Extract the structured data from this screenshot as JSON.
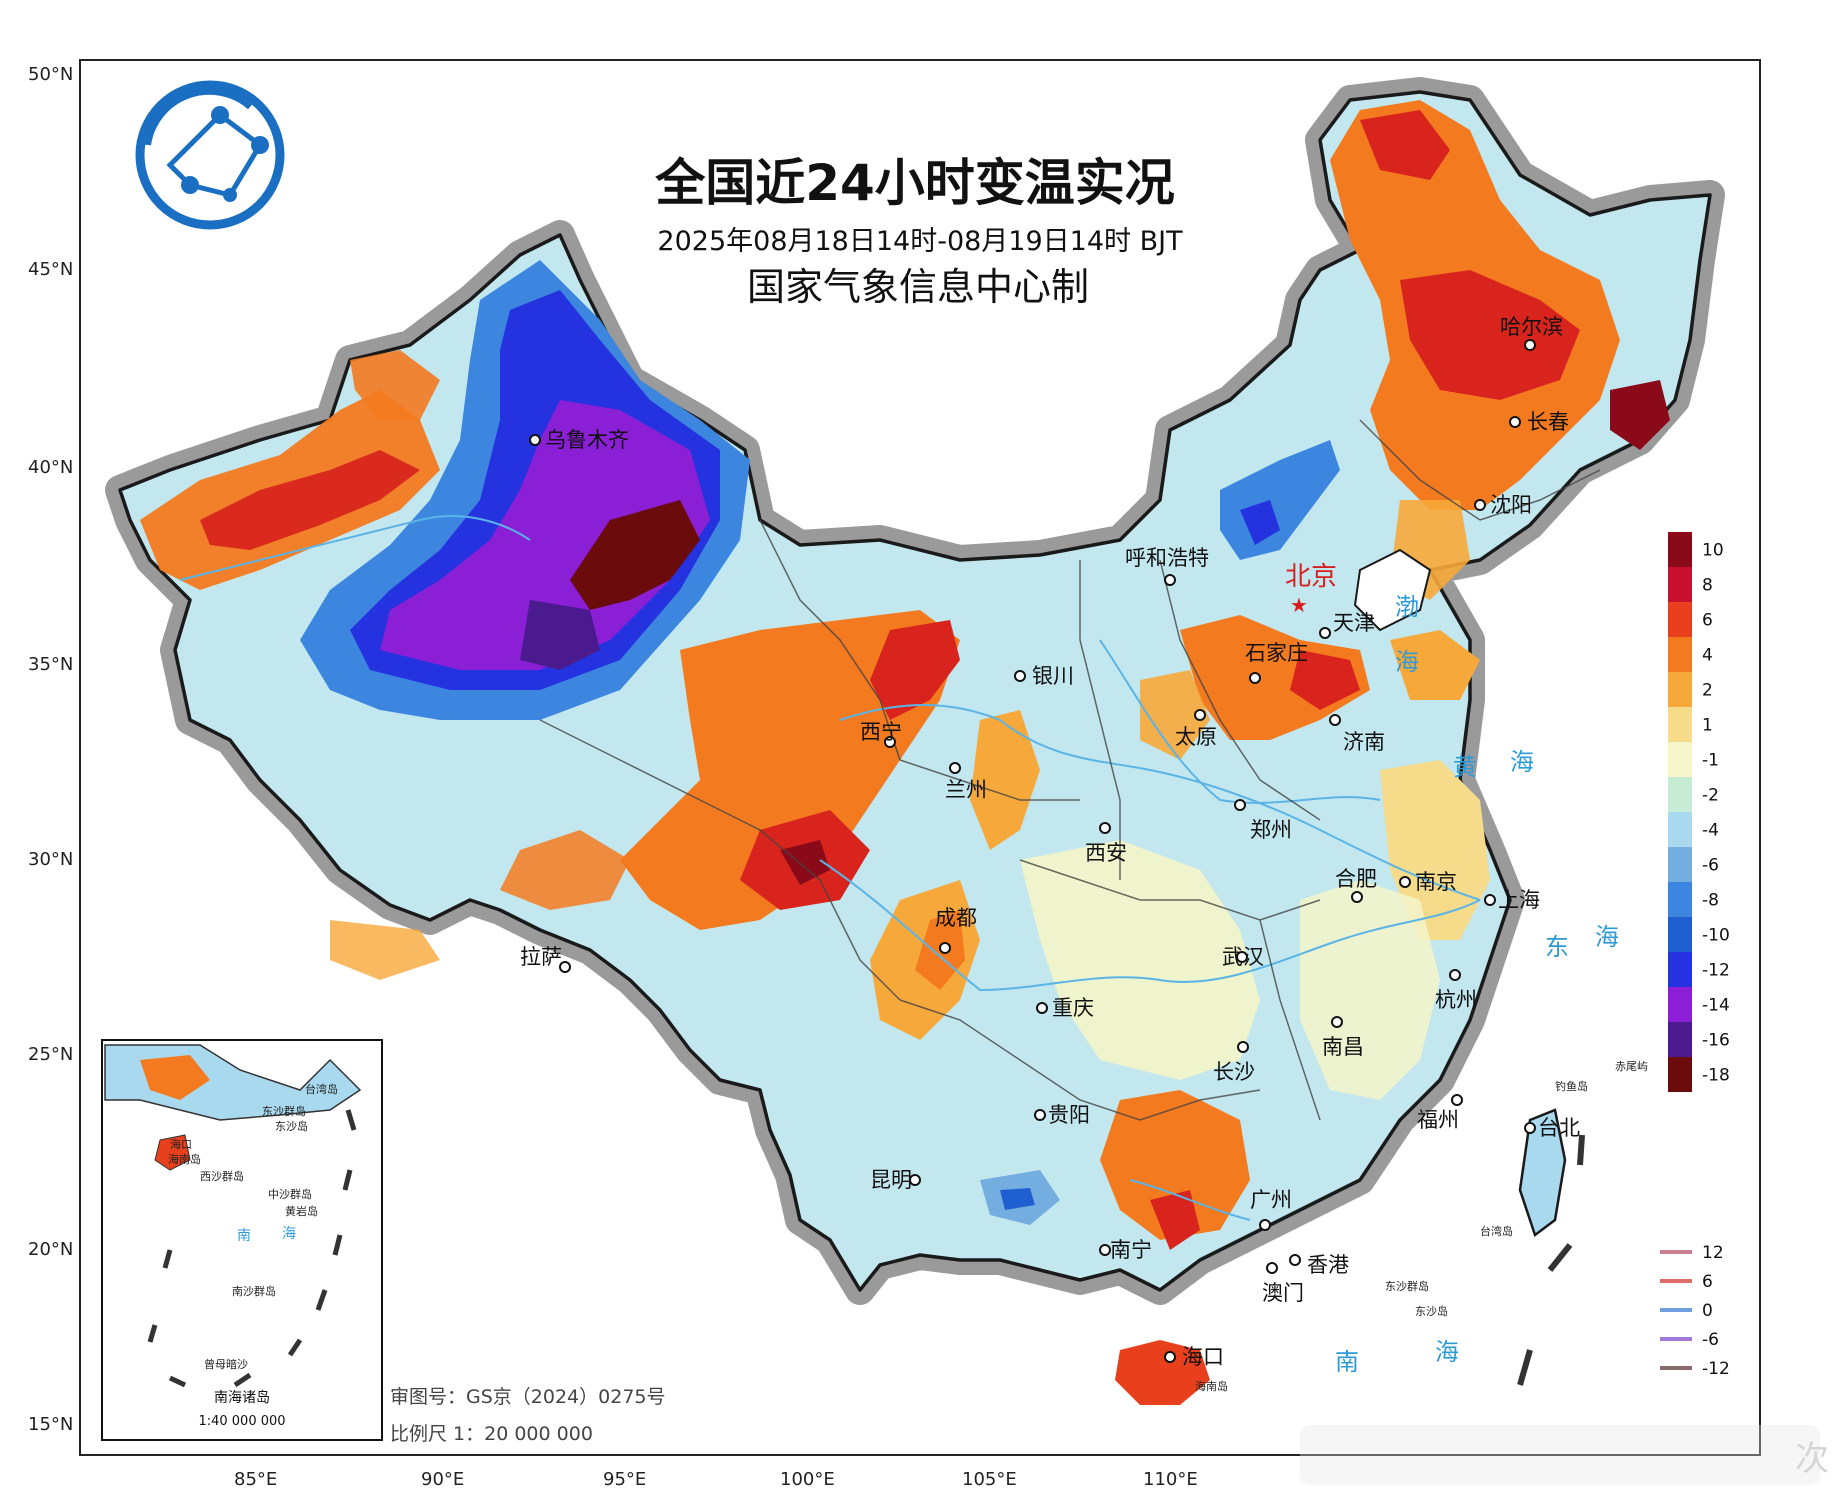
{
  "title": "全国近24小时变温实况",
  "period": "2025年08月18日14时-08月19日14时 BJT",
  "producer": "国家气象信息中心制",
  "approval": "审图号：GS京（2024）0275号",
  "scale": "比例尺 1：20 000 000",
  "lat_labels": [
    "50°N",
    "45°N",
    "40°N",
    "35°N",
    "30°N",
    "25°N",
    "20°N",
    "15°N"
  ],
  "lon_labels": [
    "85°E",
    "90°E",
    "95°E",
    "100°E",
    "105°E",
    "110°E"
  ],
  "colors": {
    "frame": "#222222",
    "ocean": "#ffffff",
    "border_halo": "#9a9a9a",
    "river": "#5ab4e6",
    "sea_text": "#2f9bd6",
    "capital": "#d62020"
  },
  "legend": {
    "items": [
      {
        "label": "10",
        "color": "#8b0a1a"
      },
      {
        "label": "8",
        "color": "#c8102e"
      },
      {
        "label": "6",
        "color": "#e8401c"
      },
      {
        "label": "4",
        "color": "#f47a1f"
      },
      {
        "label": "2",
        "color": "#f7a83a"
      },
      {
        "label": "1",
        "color": "#f6dc8a"
      },
      {
        "label": "-1",
        "color": "#f5f5c9"
      },
      {
        "label": "-2",
        "color": "#c6ecd6"
      },
      {
        "label": "-4",
        "color": "#a9d9ee"
      },
      {
        "label": "-6",
        "color": "#74aee0"
      },
      {
        "label": "-8",
        "color": "#3c86e0"
      },
      {
        "label": "-10",
        "color": "#1f5fd1"
      },
      {
        "label": "-12",
        "color": "#2432e0"
      },
      {
        "label": "-14",
        "color": "#8a1fd6"
      },
      {
        "label": "-16",
        "color": "#4a1a8e"
      },
      {
        "label": "-18",
        "color": "#6b0b0b"
      }
    ],
    "contours": [
      {
        "label": "12",
        "color": "#c98090"
      },
      {
        "label": "6",
        "color": "#e06b6b"
      },
      {
        "label": "0",
        "color": "#6fa0e0"
      },
      {
        "label": "-6",
        "color": "#a07ad6"
      },
      {
        "label": "-12",
        "color": "#8a6a6a"
      }
    ]
  },
  "cities": [
    {
      "name": "乌鲁木齐"
    },
    {
      "name": "哈尔滨"
    },
    {
      "name": "长春"
    },
    {
      "name": "沈阳"
    },
    {
      "name": "呼和浩特"
    },
    {
      "name": "天津"
    },
    {
      "name": "石家庄"
    },
    {
      "name": "银川"
    },
    {
      "name": "太原"
    },
    {
      "name": "济南"
    },
    {
      "name": "西宁"
    },
    {
      "name": "兰州"
    },
    {
      "name": "西安"
    },
    {
      "name": "郑州"
    },
    {
      "name": "合肥"
    },
    {
      "name": "南京"
    },
    {
      "name": "上海"
    },
    {
      "name": "拉萨"
    },
    {
      "name": "成都"
    },
    {
      "name": "武汉"
    },
    {
      "name": "杭州"
    },
    {
      "name": "重庆"
    },
    {
      "name": "南昌"
    },
    {
      "name": "长沙"
    },
    {
      "name": "福州"
    },
    {
      "name": "贵阳"
    },
    {
      "name": "台北"
    },
    {
      "name": "昆明"
    },
    {
      "name": "广州"
    },
    {
      "name": "南宁"
    },
    {
      "name": "香港"
    },
    {
      "name": "澳门"
    },
    {
      "name": "海口"
    }
  ],
  "capital": "北京",
  "seas": [
    "渤",
    "海",
    "黄",
    "海",
    "东",
    "海",
    "南",
    "海"
  ],
  "islands": [
    "钓鱼岛",
    "赤尾屿",
    "台湾岛",
    "东沙群岛",
    "东沙岛",
    "海南岛"
  ],
  "inset": {
    "title": "南海诸岛",
    "scale": "1:40 000 000",
    "labels": [
      "海口",
      "海南岛",
      "东沙群岛",
      "东沙岛",
      "台湾岛",
      "西沙群岛",
      "中沙群岛",
      "黄岩岛",
      "南",
      "海",
      "南沙群岛",
      "曾母暗沙"
    ]
  },
  "watermark": "次"
}
